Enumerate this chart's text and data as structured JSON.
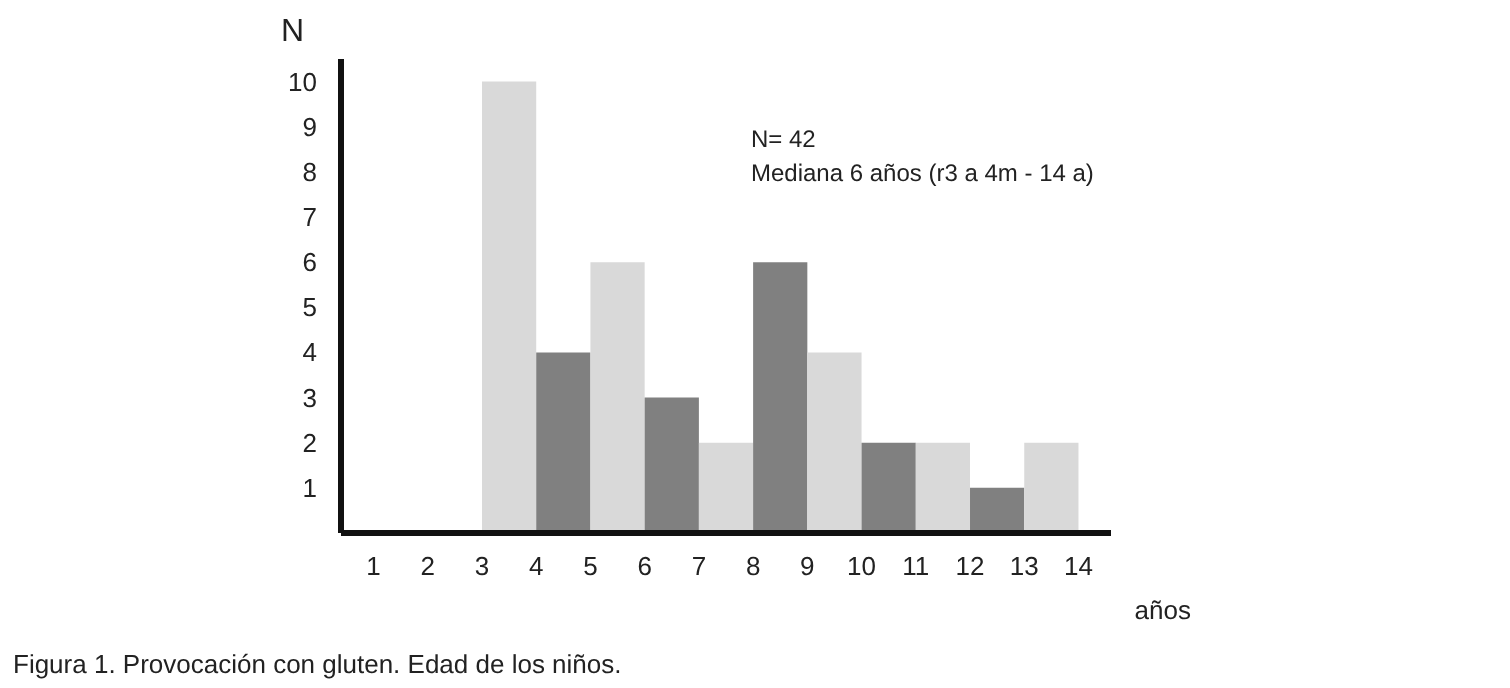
{
  "chart_data": {
    "type": "histogram",
    "xlabel": "años",
    "ylabel": "N",
    "bins": [
      3,
      4,
      5,
      6,
      7,
      8,
      9,
      10,
      11,
      12,
      13,
      14
    ],
    "values": [
      10,
      4,
      6,
      3,
      2,
      6,
      4,
      2,
      2,
      1,
      2
    ],
    "colors": [
      "#d9d9d9",
      "#808080",
      "#d9d9d9",
      "#808080",
      "#d9d9d9",
      "#808080",
      "#d9d9d9",
      "#808080",
      "#d9d9d9",
      "#808080",
      "#d9d9d9"
    ],
    "xlim": [
      0.4,
      14.6
    ],
    "ylim": [
      0,
      10.5
    ],
    "xticks": [
      1,
      2,
      3,
      4,
      5,
      6,
      7,
      8,
      9,
      10,
      11,
      12,
      13,
      14
    ],
    "yticks": [
      1,
      2,
      3,
      4,
      5,
      6,
      7,
      8,
      9,
      10
    ],
    "grid": false,
    "annotations": [
      "N= 42",
      "Mediana 6 años (r3 a 4m - 14 a)",
      "Figura 1. Provocación con gluten. Edad de los niños."
    ]
  }
}
